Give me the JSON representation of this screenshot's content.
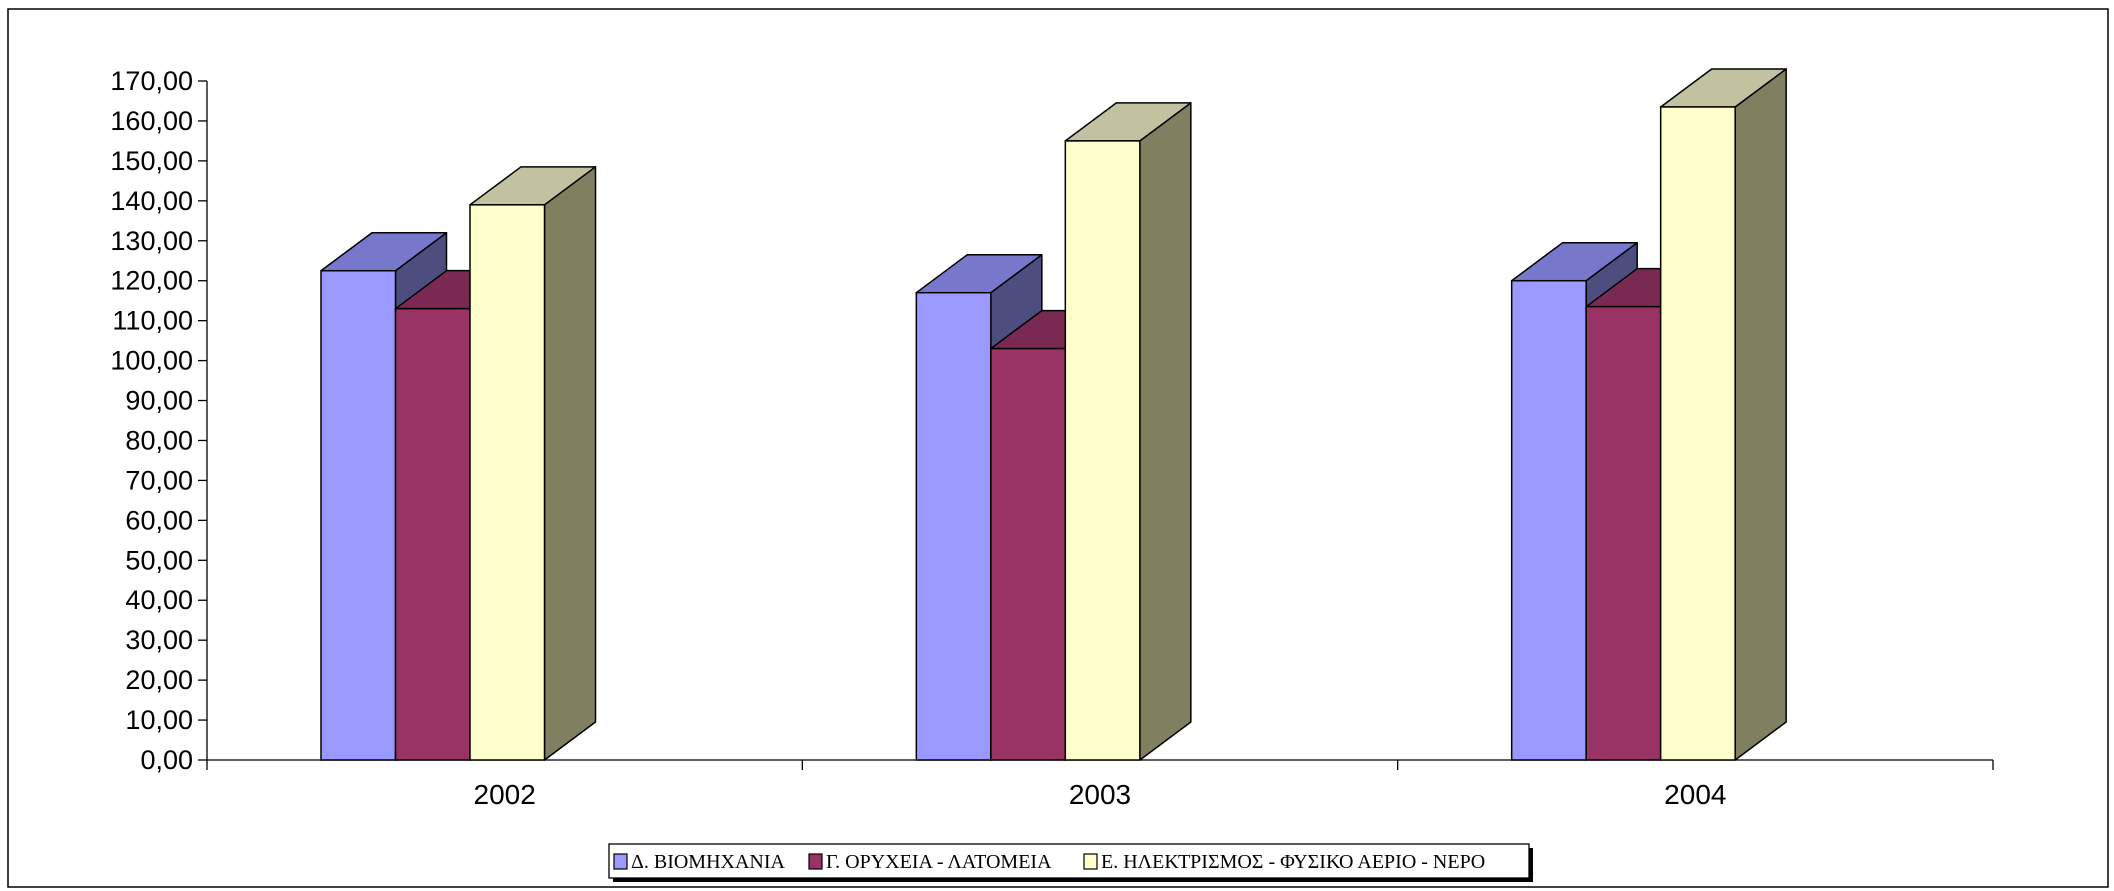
{
  "chart_data": {
    "type": "bar",
    "title": "",
    "xlabel": "",
    "ylabel": "",
    "categories": [
      "2002",
      "2003",
      "2004"
    ],
    "series": [
      {
        "name": "Δ. ΒΙΟΜΗΧΑΝΙΑ",
        "values": [
          122.5,
          117.0,
          120.0
        ],
        "color": "#9999ff"
      },
      {
        "name": "Γ. ΟΡΥΧΕΙΑ - ΛΑΤΟΜΕΙΑ",
        "values": [
          113.0,
          103.0,
          113.5
        ],
        "color": "#993366"
      },
      {
        "name": "Ε. ΗΛΕΚΤΡΙΣΜΟΣ - ΦΥΣΙΚΟ ΑΕΡΙΟ - ΝΕΡΟ",
        "values": [
          139.0,
          155.0,
          163.5
        ],
        "color": "#ffffcc"
      }
    ],
    "ylim": [
      0,
      170
    ],
    "ytick_step": 10,
    "ytick_labels": [
      "0,00",
      "10,00",
      "20,00",
      "30,00",
      "40,00",
      "50,00",
      "60,00",
      "70,00",
      "80,00",
      "90,00",
      "100,00",
      "110,00",
      "120,00",
      "130,00",
      "140,00",
      "150,00",
      "160,00",
      "170,00"
    ],
    "grid": false,
    "legend_position": "bottom"
  }
}
